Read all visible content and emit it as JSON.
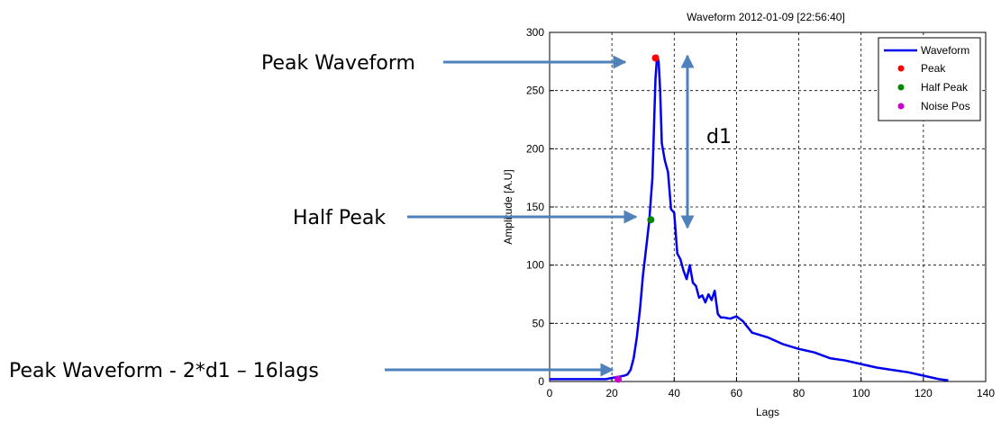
{
  "annotations": {
    "peak_waveform": "Peak Waveform",
    "half_peak": "Half Peak",
    "noise_pos": "Peak Waveform - 2*d1 – 16lags",
    "d1": "d1"
  },
  "colors": {
    "waveform": "#0000ee",
    "peak": "#ff0000",
    "half_peak": "#008800",
    "noise_pos": "#cc00cc",
    "arrow": "#4f81bd"
  },
  "chart_data": {
    "type": "line",
    "title": "Waveform 2012-01-09 [22:56:40]",
    "xlabel": "Lags",
    "ylabel": "Amplitude [A.U]",
    "xlim": [
      0,
      140
    ],
    "ylim": [
      0,
      300
    ],
    "xticks": [
      0,
      20,
      40,
      60,
      80,
      100,
      120,
      140
    ],
    "yticks": [
      0,
      50,
      100,
      150,
      200,
      250,
      300
    ],
    "grid": true,
    "legend_position": "top-right",
    "series": [
      {
        "name": "Waveform",
        "style": "line",
        "x": [
          0,
          5,
          10,
          15,
          18,
          20,
          22,
          24,
          25,
          26,
          27,
          28,
          29,
          30,
          31,
          32,
          33,
          34,
          34.5,
          35,
          35.5,
          36,
          37,
          38,
          39,
          40,
          41,
          42,
          43,
          44,
          45,
          46,
          47,
          48,
          49,
          50,
          51,
          52,
          53,
          54,
          55,
          56,
          58,
          60,
          62,
          65,
          70,
          75,
          80,
          85,
          90,
          95,
          100,
          105,
          110,
          115,
          120,
          125,
          128
        ],
        "y": [
          2,
          2,
          2,
          2,
          2,
          3,
          4,
          5,
          6,
          10,
          20,
          38,
          62,
          92,
          115,
          138,
          175,
          260,
          280,
          275,
          250,
          205,
          190,
          180,
          148,
          145,
          110,
          105,
          95,
          88,
          100,
          85,
          82,
          72,
          74,
          68,
          75,
          70,
          78,
          58,
          55,
          55,
          54,
          56,
          52,
          42,
          38,
          32,
          28,
          25,
          20,
          18,
          15,
          12,
          10,
          8,
          5,
          2,
          1
        ]
      },
      {
        "name": "Peak",
        "style": "marker",
        "x": [
          34
        ],
        "y": [
          278
        ]
      },
      {
        "name": "Half Peak",
        "style": "marker",
        "x": [
          32.5
        ],
        "y": [
          139
        ]
      },
      {
        "name": "Noise Pos",
        "style": "marker",
        "x": [
          22
        ],
        "y": [
          2
        ]
      }
    ]
  }
}
